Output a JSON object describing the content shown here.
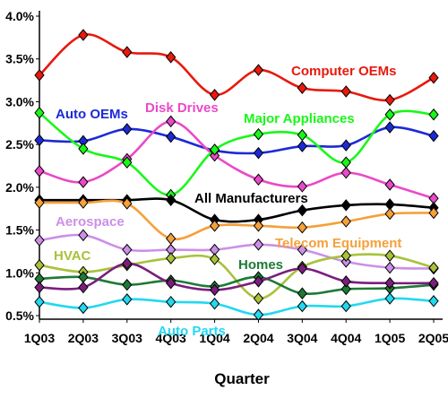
{
  "chart_data": {
    "type": "line",
    "title": "",
    "xlabel": "Quarter",
    "ylabel": "",
    "x": [
      "1Q03",
      "2Q03",
      "3Q03",
      "4Q03",
      "1Q04",
      "2Q04",
      "3Q04",
      "4Q04",
      "1Q05",
      "2Q05"
    ],
    "ylim": [
      0.5,
      4.0
    ],
    "yticks": [
      "0.5%",
      "1.0%",
      "1.5%",
      "2.0%",
      "2.5%",
      "3.0%",
      "3.5%",
      "4.0%"
    ],
    "ytick_values": [
      0.5,
      1.0,
      1.5,
      2.0,
      2.5,
      3.0,
      3.5,
      4.0
    ],
    "grid": false,
    "legend": "inline labels",
    "series": [
      {
        "name": "Computer OEMs",
        "color": "#e8190e",
        "values": [
          3.31,
          3.78,
          3.58,
          3.52,
          3.08,
          3.37,
          3.16,
          3.12,
          3.02,
          3.28
        ]
      },
      {
        "name": "Auto OEMs",
        "color": "#1c2ad6",
        "values": [
          2.55,
          2.54,
          2.68,
          2.59,
          2.43,
          2.4,
          2.48,
          2.49,
          2.7,
          2.6
        ]
      },
      {
        "name": "Disk Drives",
        "color": "#ea49c8",
        "values": [
          2.19,
          2.06,
          2.33,
          2.77,
          2.37,
          2.09,
          2.01,
          2.17,
          2.03,
          1.87
        ]
      },
      {
        "name": "Major Appliances",
        "color": "#19f719",
        "values": [
          2.87,
          2.45,
          2.29,
          1.91,
          2.44,
          2.62,
          2.61,
          2.29,
          2.85,
          2.85
        ]
      },
      {
        "name": "All Manufacturers",
        "color": "#000000",
        "values": [
          1.85,
          1.85,
          1.85,
          1.85,
          1.62,
          1.62,
          1.73,
          1.79,
          1.8,
          1.76
        ]
      },
      {
        "name": "Aerospace",
        "color": "#cc8fe8",
        "values": [
          1.38,
          1.44,
          1.27,
          1.27,
          1.27,
          1.33,
          1.27,
          1.13,
          1.06,
          1.05
        ]
      },
      {
        "name": "Telecom Equipment",
        "color": "#f5a03a",
        "values": [
          1.82,
          1.82,
          1.81,
          1.4,
          1.55,
          1.55,
          1.53,
          1.6,
          1.69,
          1.7
        ]
      },
      {
        "name": "HVAC",
        "color": "#a8c23a",
        "values": [
          1.09,
          1.01,
          1.09,
          1.17,
          1.16,
          0.7,
          1.07,
          1.2,
          1.2,
          1.06
        ]
      },
      {
        "name": "Homes",
        "color": "#1e7a35",
        "values": [
          0.93,
          0.95,
          0.86,
          0.91,
          0.84,
          0.95,
          0.76,
          0.81,
          0.82,
          0.86
        ]
      },
      {
        "name": "",
        "color": "#7a1e7e",
        "values": [
          0.83,
          0.83,
          1.11,
          0.88,
          0.8,
          0.9,
          1.05,
          0.9,
          0.88,
          0.88
        ]
      },
      {
        "name": "Auto Parts",
        "color": "#22d8f0",
        "values": [
          0.66,
          0.59,
          0.69,
          0.66,
          0.64,
          0.51,
          0.61,
          0.61,
          0.7,
          0.67
        ]
      }
    ]
  }
}
